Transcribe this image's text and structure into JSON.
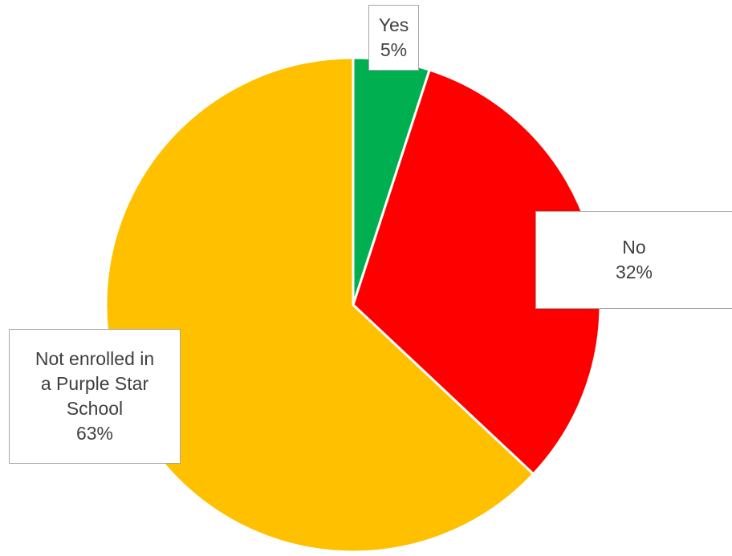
{
  "chart_data": {
    "type": "pie",
    "title": "",
    "slices": [
      {
        "label_lines": [
          "Yes"
        ],
        "percent_label": "5%",
        "value": 5,
        "color": "#00b050"
      },
      {
        "label_lines": [
          "No"
        ],
        "percent_label": "32%",
        "value": 32,
        "color": "#ff0000"
      },
      {
        "label_lines": [
          "Not enrolled in",
          "a Purple Star",
          "School"
        ],
        "percent_label": "63%",
        "value": 63,
        "color": "#ffc000"
      }
    ],
    "legend": "none",
    "start_angle": "12 o'clock",
    "direction": "clockwise"
  }
}
